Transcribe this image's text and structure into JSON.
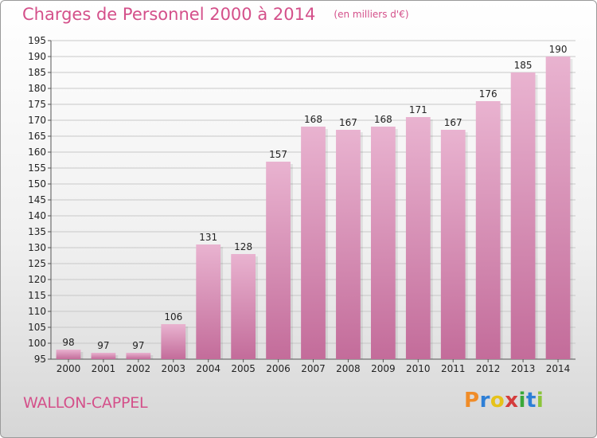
{
  "header": {
    "title": "Charges de Personnel 2000 à 2014",
    "subtitle": "(en milliers d'€)"
  },
  "footer": {
    "town": "WALLON-CAPPEL",
    "logo": [
      "P",
      "r",
      "o",
      "x",
      "i",
      "t",
      "i"
    ],
    "logo_colors": [
      "#f08c28",
      "#2d7fd6",
      "#e6c21a",
      "#d43c3c",
      "#3aa83a",
      "#2d7fd6",
      "#8bc43a"
    ]
  },
  "colors": {
    "bar_light": "#e9b3d0",
    "bar_dark": "#c36c9a",
    "grid": "#c8c8c8",
    "accent": "#d4508a"
  },
  "chart_data": {
    "type": "bar",
    "title": "Charges de Personnel 2000 à 2014",
    "subtitle": "(en milliers d'€)",
    "categories": [
      "2000",
      "2001",
      "2002",
      "2003",
      "2004",
      "2005",
      "2006",
      "2007",
      "2008",
      "2009",
      "2010",
      "2011",
      "2012",
      "2013",
      "2014"
    ],
    "values": [
      98,
      97,
      97,
      106,
      131,
      128,
      157,
      168,
      167,
      168,
      171,
      167,
      176,
      185,
      190
    ],
    "ylim": [
      95,
      195
    ],
    "yticks": [
      95,
      100,
      105,
      110,
      115,
      120,
      125,
      130,
      135,
      140,
      145,
      150,
      155,
      160,
      165,
      170,
      175,
      180,
      185,
      190,
      195
    ],
    "grid": true,
    "xlabel": "",
    "ylabel": ""
  }
}
